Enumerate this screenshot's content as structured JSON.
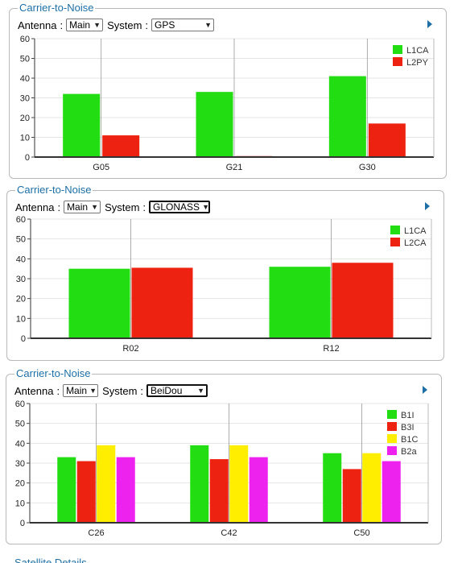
{
  "panels": [
    {
      "title": "Carrier-to-Noise",
      "antenna_label": "Antenna",
      "antenna_value": "Main",
      "system_label": "System",
      "system_value": "GPS"
    },
    {
      "title": "Carrier-to-Noise",
      "antenna_label": "Antenna",
      "antenna_value": "Main",
      "system_label": "System",
      "system_value": "GLONASS"
    },
    {
      "title": "Carrier-to-Noise",
      "antenna_label": "Antenna",
      "antenna_value": "Main",
      "system_label": "System",
      "system_value": "BeiDou"
    }
  ],
  "next_section_title": "Satellite Details",
  "colors": {
    "green": "#22dd11",
    "red": "#ee2211",
    "yellow": "#ffee00",
    "magenta": "#ee22ee",
    "accent": "#1d6fa5"
  },
  "chart_data": [
    {
      "type": "bar",
      "categories": [
        "G05",
        "G21",
        "G30"
      ],
      "series": [
        {
          "name": "L1CA",
          "color": "#22dd11",
          "values": [
            32,
            33,
            41
          ]
        },
        {
          "name": "L2PY",
          "color": "#ee2211",
          "values": [
            11,
            0.5,
            17
          ]
        }
      ],
      "ylim": [
        0,
        60
      ],
      "yticks": [
        "0",
        "10",
        "20",
        "30",
        "40",
        "50",
        "60"
      ],
      "grid": true,
      "legend": "top-right"
    },
    {
      "type": "bar",
      "categories": [
        "R02",
        "R12"
      ],
      "series": [
        {
          "name": "L1CA",
          "color": "#22dd11",
          "values": [
            35,
            36
          ]
        },
        {
          "name": "L2CA",
          "color": "#ee2211",
          "values": [
            35.5,
            38
          ]
        }
      ],
      "ylim": [
        0,
        60
      ],
      "yticks": [
        "0",
        "10",
        "20",
        "30",
        "40",
        "50",
        "60"
      ],
      "grid": true,
      "legend": "top-right"
    },
    {
      "type": "bar",
      "categories": [
        "C26",
        "C42",
        "C50"
      ],
      "series": [
        {
          "name": "B1I",
          "color": "#22dd11",
          "values": [
            33,
            39,
            35
          ]
        },
        {
          "name": "B3I",
          "color": "#ee2211",
          "values": [
            31,
            32,
            27
          ]
        },
        {
          "name": "B1C",
          "color": "#ffee00",
          "values": [
            39,
            39,
            35
          ]
        },
        {
          "name": "B2a",
          "color": "#ee22ee",
          "values": [
            33,
            33,
            31
          ]
        }
      ],
      "ylim": [
        0,
        60
      ],
      "yticks": [
        "0",
        "10",
        "20",
        "30",
        "40",
        "50",
        "60"
      ],
      "grid": true,
      "legend": "top-right"
    }
  ]
}
